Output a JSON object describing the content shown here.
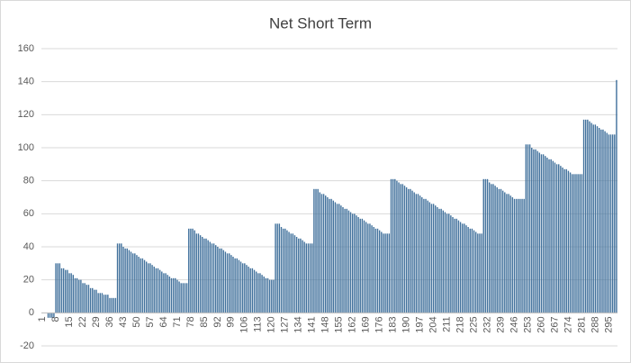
{
  "chart_data": {
    "type": "bar",
    "title": "Net Short Term",
    "color": "#41719c",
    "grid": true,
    "ylim": [
      -20,
      160
    ],
    "yticks": [
      -20,
      0,
      20,
      40,
      60,
      80,
      100,
      120,
      140,
      160
    ],
    "categories": [
      1,
      null,
      null,
      null,
      null,
      null,
      null,
      8,
      null,
      null,
      null,
      null,
      null,
      null,
      15,
      null,
      null,
      null,
      null,
      null,
      null,
      22,
      null,
      null,
      null,
      null,
      null,
      null,
      29,
      null,
      null,
      null,
      null,
      null,
      null,
      36,
      null,
      null,
      null,
      null,
      null,
      null,
      43,
      null,
      null,
      null,
      null,
      null,
      null,
      50,
      null,
      null,
      null,
      null,
      null,
      null,
      57,
      null,
      null,
      null,
      null,
      null,
      null,
      64,
      null,
      null,
      null,
      null,
      null,
      null,
      71,
      null,
      null,
      null,
      null,
      null,
      null,
      78,
      null,
      null,
      null,
      null,
      null,
      null,
      85,
      null,
      null,
      null,
      null,
      null,
      null,
      92,
      null,
      null,
      null,
      null,
      null,
      null,
      99,
      null,
      null,
      null,
      null,
      null,
      null,
      106,
      null,
      null,
      null,
      null,
      null,
      null,
      113,
      null,
      null,
      null,
      null,
      null,
      null,
      120,
      null,
      null,
      null,
      null,
      null,
      null,
      127,
      null,
      null,
      null,
      null,
      null,
      null,
      134,
      null,
      null,
      null,
      null,
      null,
      null,
      141,
      null,
      null,
      null,
      null,
      null,
      null,
      148,
      null,
      null,
      null,
      null,
      null,
      null,
      155,
      null,
      null,
      null,
      null,
      null,
      null,
      162,
      null,
      null,
      null,
      null,
      null,
      null,
      169,
      null,
      null,
      null,
      null,
      null,
      null,
      176,
      null,
      null,
      null,
      null,
      null,
      null,
      183,
      null,
      null,
      null,
      null,
      null,
      null,
      190,
      null,
      null,
      null,
      null,
      null,
      null,
      197,
      null,
      null,
      null,
      null,
      null,
      null,
      204,
      null,
      null,
      null,
      null,
      null,
      null,
      211,
      null,
      null,
      null,
      null,
      null,
      null,
      218,
      null,
      null,
      null,
      null,
      null,
      null,
      225,
      null,
      null,
      null,
      null,
      null,
      null,
      232,
      null,
      null,
      null,
      null,
      null,
      null,
      239,
      null,
      null,
      null,
      null,
      null,
      null,
      246,
      null,
      null,
      null,
      null,
      null,
      null,
      253,
      null,
      null,
      null,
      null,
      null,
      null,
      260,
      null,
      null,
      null,
      null,
      null,
      null,
      267,
      null,
      null,
      null,
      null,
      null,
      null,
      274,
      null,
      null,
      null,
      null,
      null,
      null,
      281,
      null,
      null,
      null,
      null,
      null,
      null,
      288,
      null,
      null,
      null,
      null,
      null,
      null,
      295,
      null,
      null,
      null,
      null
    ],
    "values": [
      0,
      0,
      0,
      -3,
      -3,
      -3,
      -3,
      30,
      30,
      30,
      27,
      27,
      26,
      26,
      24,
      24,
      23,
      21,
      21,
      20,
      20,
      18,
      18,
      17,
      17,
      15,
      15,
      14,
      14,
      12,
      12,
      12,
      11,
      11,
      11,
      9,
      9,
      9,
      9,
      42,
      42,
      42,
      40,
      39,
      39,
      38,
      37,
      36,
      36,
      35,
      34,
      33,
      33,
      32,
      31,
      30,
      30,
      29,
      28,
      27,
      27,
      26,
      25,
      24,
      24,
      23,
      22,
      21,
      21,
      21,
      20,
      19,
      18,
      18,
      18,
      18,
      51,
      51,
      51,
      50,
      48,
      48,
      47,
      46,
      45,
      45,
      44,
      43,
      42,
      42,
      41,
      40,
      39,
      39,
      38,
      37,
      36,
      36,
      35,
      34,
      33,
      33,
      32,
      31,
      30,
      30,
      29,
      28,
      27,
      27,
      26,
      25,
      24,
      24,
      23,
      22,
      21,
      21,
      20,
      20,
      20,
      54,
      54,
      54,
      52,
      51,
      51,
      50,
      49,
      48,
      48,
      47,
      46,
      45,
      45,
      44,
      43,
      42,
      42,
      42,
      42,
      75,
      75,
      75,
      73,
      72,
      72,
      71,
      70,
      69,
      69,
      68,
      67,
      66,
      66,
      65,
      64,
      63,
      63,
      62,
      61,
      60,
      60,
      59,
      58,
      57,
      57,
      56,
      55,
      54,
      54,
      53,
      52,
      51,
      51,
      50,
      49,
      48,
      48,
      48,
      48,
      81,
      81,
      81,
      80,
      79,
      78,
      78,
      77,
      76,
      75,
      75,
      74,
      73,
      72,
      72,
      71,
      70,
      69,
      69,
      68,
      67,
      66,
      66,
      65,
      64,
      63,
      63,
      62,
      61,
      60,
      60,
      59,
      58,
      57,
      57,
      56,
      55,
      54,
      54,
      53,
      52,
      51,
      51,
      50,
      49,
      48,
      48,
      48,
      81,
      81,
      81,
      79,
      78,
      78,
      77,
      76,
      75,
      75,
      74,
      73,
      72,
      72,
      71,
      70,
      69,
      69,
      69,
      69,
      69,
      69,
      102,
      102,
      102,
      100,
      99,
      99,
      98,
      97,
      96,
      96,
      95,
      94,
      93,
      93,
      92,
      91,
      90,
      90,
      89,
      88,
      87,
      87,
      86,
      85,
      84,
      84,
      84,
      84,
      84,
      84,
      117,
      117,
      117,
      116,
      115,
      114,
      114,
      113,
      112,
      111,
      111,
      110,
      109,
      108,
      108,
      108,
      108,
      141
    ]
  }
}
